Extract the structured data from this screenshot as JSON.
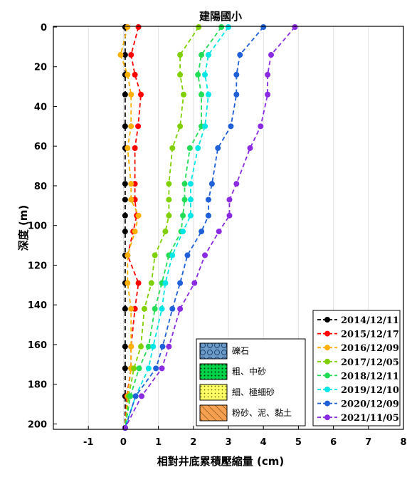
{
  "chart_data": {
    "type": "line",
    "title": "建陽國小",
    "xlabel": "相對井底累積壓縮量 (cm)",
    "ylabel": "深度 (m)",
    "xlim": [
      -2,
      8
    ],
    "ylim": [
      0,
      202
    ],
    "y_reversed": true,
    "x_ticks": [
      "-1",
      "0",
      "1",
      "2",
      "3",
      "4",
      "5",
      "6",
      "7",
      "8"
    ],
    "y_ticks": [
      "0",
      "20",
      "40",
      "60",
      "80",
      "100",
      "120",
      "140",
      "160",
      "180",
      "200"
    ],
    "grid": "vertical",
    "line_style": "dashed",
    "legend_position": "lower-right",
    "series": [
      {
        "name": "2014/12/11",
        "color": "#000000",
        "points": [
          [
            0.05,
            0
          ],
          [
            0.05,
            14
          ],
          [
            0.05,
            24
          ],
          [
            0.05,
            34
          ],
          [
            0.05,
            50
          ],
          [
            0.05,
            61
          ],
          [
            0.05,
            79
          ],
          [
            0.05,
            87
          ],
          [
            0.05,
            95
          ],
          [
            0.05,
            103
          ],
          [
            0.05,
            115
          ],
          [
            0.05,
            129
          ],
          [
            0.05,
            142
          ],
          [
            0.05,
            161
          ],
          [
            0.05,
            172
          ],
          [
            0.05,
            186
          ],
          [
            0.05,
            202
          ]
        ]
      },
      {
        "name": "2015/12/17",
        "color": "#ff0000",
        "points": [
          [
            0.43,
            0
          ],
          [
            0.22,
            14
          ],
          [
            0.33,
            24
          ],
          [
            0.5,
            34
          ],
          [
            0.42,
            50
          ],
          [
            0.33,
            61
          ],
          [
            0.33,
            79
          ],
          [
            0.33,
            87
          ],
          [
            0.38,
            95
          ],
          [
            0.28,
            103
          ],
          [
            0.12,
            115
          ],
          [
            0.43,
            129
          ],
          [
            0.33,
            142
          ],
          [
            0.22,
            161
          ],
          [
            0.22,
            172
          ],
          [
            0.1,
            186
          ],
          [
            0.05,
            202
          ]
        ]
      },
      {
        "name": "2016/12/09",
        "color": "#ffb000",
        "points": [
          [
            0.12,
            0
          ],
          [
            -0.08,
            14
          ],
          [
            0.12,
            24
          ],
          [
            0.22,
            34
          ],
          [
            0.22,
            50
          ],
          [
            0.12,
            61
          ],
          [
            0.22,
            79
          ],
          [
            0.22,
            87
          ],
          [
            0.43,
            95
          ],
          [
            0.33,
            103
          ],
          [
            0.12,
            115
          ],
          [
            0.12,
            129
          ],
          [
            0.22,
            142
          ],
          [
            0.22,
            161
          ],
          [
            0.22,
            172
          ],
          [
            0.12,
            186
          ],
          [
            0.05,
            202
          ]
        ]
      },
      {
        "name": "2017/12/05",
        "color": "#7fd000",
        "points": [
          [
            2.15,
            0
          ],
          [
            1.62,
            14
          ],
          [
            1.62,
            24
          ],
          [
            1.72,
            34
          ],
          [
            1.62,
            50
          ],
          [
            1.4,
            61
          ],
          [
            1.3,
            79
          ],
          [
            1.3,
            87
          ],
          [
            1.3,
            95
          ],
          [
            1.2,
            103
          ],
          [
            0.9,
            115
          ],
          [
            0.8,
            129
          ],
          [
            0.6,
            142
          ],
          [
            0.5,
            161
          ],
          [
            0.3,
            172
          ],
          [
            0.15,
            186
          ],
          [
            0.05,
            202
          ]
        ]
      },
      {
        "name": "2018/12/11",
        "color": "#22dd55",
        "points": [
          [
            2.8,
            0
          ],
          [
            2.23,
            14
          ],
          [
            2.13,
            24
          ],
          [
            2.23,
            34
          ],
          [
            2.23,
            50
          ],
          [
            1.9,
            61
          ],
          [
            1.75,
            79
          ],
          [
            1.75,
            87
          ],
          [
            1.7,
            95
          ],
          [
            1.65,
            103
          ],
          [
            1.3,
            115
          ],
          [
            1.1,
            129
          ],
          [
            0.9,
            142
          ],
          [
            0.72,
            161
          ],
          [
            0.45,
            172
          ],
          [
            0.2,
            186
          ],
          [
            0.05,
            202
          ]
        ]
      },
      {
        "name": "2019/12/10",
        "color": "#00e5e5",
        "points": [
          [
            3.0,
            0
          ],
          [
            2.43,
            14
          ],
          [
            2.33,
            24
          ],
          [
            2.43,
            34
          ],
          [
            2.33,
            50
          ],
          [
            2.13,
            61
          ],
          [
            1.92,
            79
          ],
          [
            1.92,
            87
          ],
          [
            1.92,
            95
          ],
          [
            1.7,
            103
          ],
          [
            1.4,
            115
          ],
          [
            1.2,
            129
          ],
          [
            1.1,
            142
          ],
          [
            0.85,
            161
          ],
          [
            0.72,
            172
          ],
          [
            0.35,
            186
          ],
          [
            0.05,
            202
          ]
        ]
      },
      {
        "name": "2020/12/09",
        "color": "#1f5fd8",
        "points": [
          [
            4.0,
            0
          ],
          [
            3.33,
            14
          ],
          [
            3.23,
            24
          ],
          [
            3.23,
            34
          ],
          [
            3.07,
            50
          ],
          [
            2.7,
            61
          ],
          [
            2.53,
            79
          ],
          [
            2.43,
            87
          ],
          [
            2.43,
            95
          ],
          [
            2.23,
            103
          ],
          [
            1.83,
            115
          ],
          [
            1.62,
            129
          ],
          [
            1.4,
            142
          ],
          [
            1.12,
            161
          ],
          [
            0.93,
            172
          ],
          [
            0.35,
            186
          ],
          [
            0.05,
            202
          ]
        ]
      },
      {
        "name": "2021/11/05",
        "color": "#8a2be2",
        "points": [
          [
            4.9,
            0
          ],
          [
            4.22,
            14
          ],
          [
            4.12,
            24
          ],
          [
            4.12,
            34
          ],
          [
            3.92,
            50
          ],
          [
            3.62,
            61
          ],
          [
            3.23,
            79
          ],
          [
            3.03,
            87
          ],
          [
            3.03,
            95
          ],
          [
            2.73,
            103
          ],
          [
            2.33,
            115
          ],
          [
            2.03,
            129
          ],
          [
            1.62,
            142
          ],
          [
            1.3,
            161
          ],
          [
            1.1,
            172
          ],
          [
            0.52,
            186
          ],
          [
            0.05,
            202
          ]
        ]
      }
    ],
    "soil_legend": [
      {
        "label": "礫石",
        "fill": "#6d9bc8",
        "pattern": "circles"
      },
      {
        "label": "粗、中砂",
        "fill": "#00d34a",
        "pattern": "dots-dark"
      },
      {
        "label": "細、極細砂",
        "fill": "#ffff66",
        "pattern": "dots-light"
      },
      {
        "label": "粉砂、泥、黏土",
        "fill": "#f5a050",
        "pattern": "hatch"
      }
    ]
  }
}
